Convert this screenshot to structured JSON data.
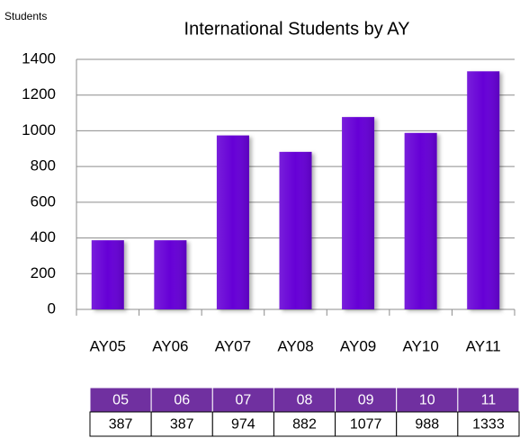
{
  "chart_data": {
    "type": "bar",
    "title": "International Students by AY",
    "y_label": "Students",
    "categories": [
      "AY05",
      "AY06",
      "AY07",
      "AY08",
      "AY09",
      "AY10",
      "AY11"
    ],
    "values": [
      387,
      387,
      974,
      882,
      1077,
      988,
      1333
    ],
    "color": "#6600d6",
    "ylim": [
      0,
      1400
    ],
    "yticks": [
      0,
      200,
      400,
      600,
      800,
      1000,
      1200,
      1400
    ],
    "grid": true,
    "table_header": [
      "05",
      "06",
      "07",
      "08",
      "09",
      "10",
      "11"
    ],
    "table_header_color": "#7030a0"
  }
}
